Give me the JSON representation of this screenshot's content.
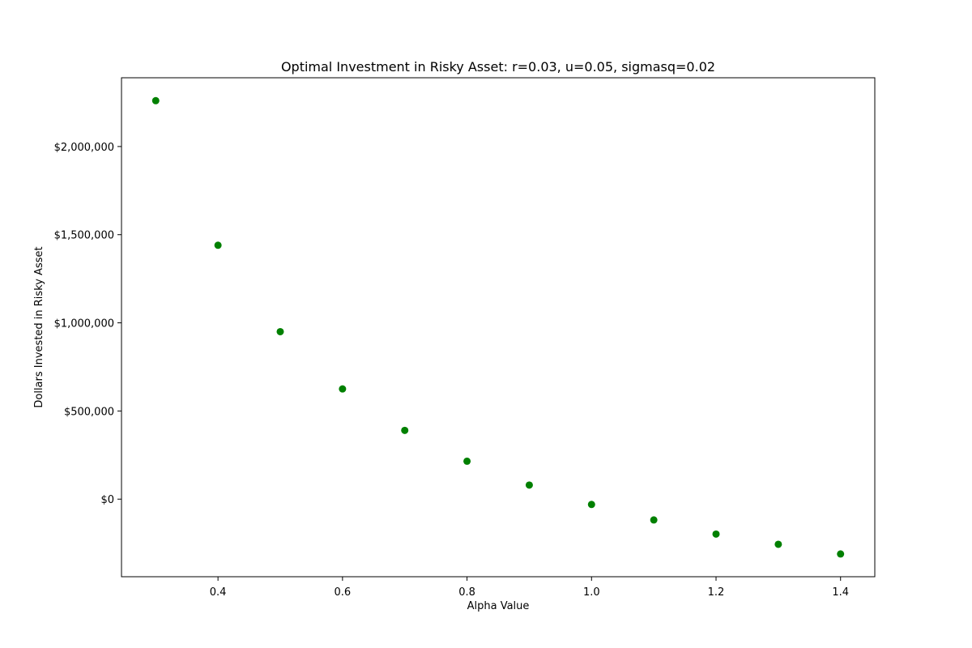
{
  "chart_data": {
    "type": "scatter",
    "title": "Optimal Investment in Risky Asset: r=0.03, u=0.05, sigmasq=0.02",
    "xlabel": "Alpha Value",
    "ylabel": "Dollars Invested in Risky Asset",
    "xlim": [
      0.245,
      1.455
    ],
    "ylim": [
      -440000,
      2390000
    ],
    "xticks": [
      {
        "value": 0.4,
        "label": "0.4"
      },
      {
        "value": 0.6,
        "label": "0.6"
      },
      {
        "value": 0.8,
        "label": "0.8"
      },
      {
        "value": 1.0,
        "label": "1.0"
      },
      {
        "value": 1.2,
        "label": "1.2"
      },
      {
        "value": 1.4,
        "label": "1.4"
      }
    ],
    "yticks": [
      {
        "value": 0,
        "label": "$0"
      },
      {
        "value": 500000,
        "label": "$500,000"
      },
      {
        "value": 1000000,
        "label": "$1,000,000"
      },
      {
        "value": 1500000,
        "label": "$1,500,000"
      },
      {
        "value": 2000000,
        "label": "$2,000,000"
      }
    ],
    "grid": false,
    "color": "#008000",
    "points": [
      {
        "x": 0.3,
        "y": 2260000
      },
      {
        "x": 0.4,
        "y": 1440000
      },
      {
        "x": 0.5,
        "y": 950000
      },
      {
        "x": 0.6,
        "y": 625000
      },
      {
        "x": 0.7,
        "y": 390000
      },
      {
        "x": 0.8,
        "y": 215000
      },
      {
        "x": 0.9,
        "y": 80000
      },
      {
        "x": 1.0,
        "y": -30000
      },
      {
        "x": 1.1,
        "y": -118000
      },
      {
        "x": 1.2,
        "y": -198000
      },
      {
        "x": 1.3,
        "y": -256000
      },
      {
        "x": 1.4,
        "y": -311000
      }
    ]
  }
}
